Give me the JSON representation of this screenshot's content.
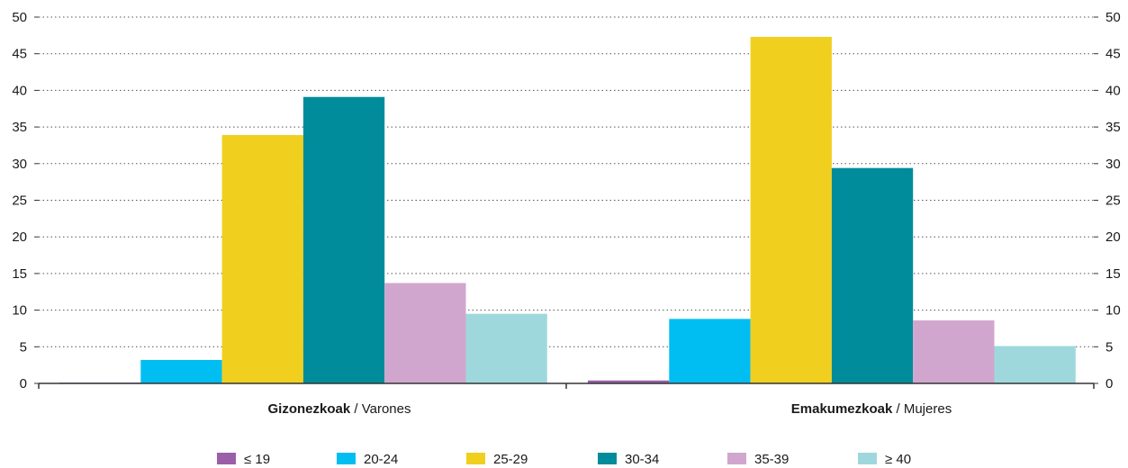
{
  "chart_data": {
    "type": "bar",
    "categories": [
      {
        "bold": "Gizonezkoak",
        "rest": " / Varones"
      },
      {
        "bold": "Emakumezkoak",
        "rest": " / Mujeres"
      }
    ],
    "series": [
      {
        "name": "≤ 19",
        "color": "#9B5FA8",
        "values": [
          0.1,
          0.4
        ]
      },
      {
        "name": "20-24",
        "color": "#00BDF2",
        "values": [
          3.2,
          8.8
        ]
      },
      {
        "name": "25-29",
        "color": "#F1CF1F",
        "values": [
          33.9,
          47.3
        ]
      },
      {
        "name": "30-34",
        "color": "#008C9A",
        "values": [
          39.1,
          29.4
        ]
      },
      {
        "name": "35-39",
        "color": "#D1A6CE",
        "values": [
          13.7,
          8.6
        ]
      },
      {
        "name": "≥ 40",
        "color": "#9FD8DC",
        "values": [
          9.5,
          5.1
        ]
      }
    ],
    "yticks": [
      0,
      5,
      10,
      15,
      20,
      25,
      30,
      35,
      40,
      45,
      50
    ],
    "ylim": [
      0,
      50
    ],
    "grid": true,
    "legend_position": "bottom",
    "axis_labels_both_sides": true
  }
}
